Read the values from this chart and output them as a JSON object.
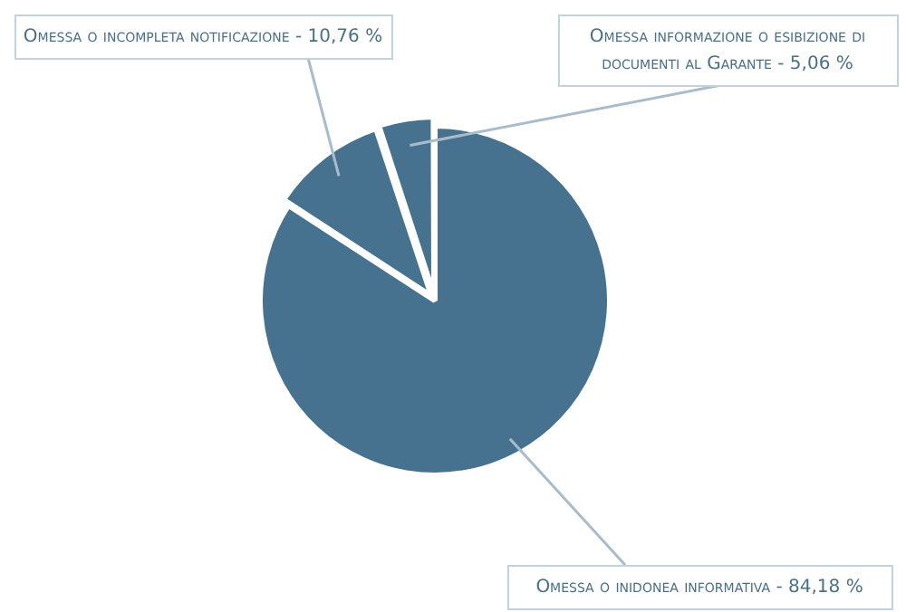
{
  "chart_data": {
    "type": "pie",
    "categories": [
      "Omessa o inidonea informativa",
      "Omessa o incompleta notificazione",
      "Omessa informazione o esibizione di documenti al Garante"
    ],
    "values": [
      84.18,
      10.76,
      5.06
    ],
    "colors": [
      "#47728f",
      "#47728f",
      "#47728f"
    ],
    "value_labels": [
      "84,18 %",
      "10,76 %",
      "5,06 %"
    ]
  }
}
